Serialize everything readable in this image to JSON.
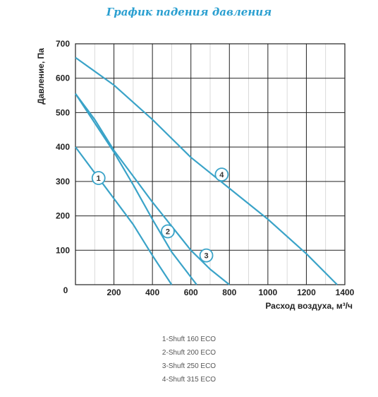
{
  "chart_data": {
    "type": "line",
    "title": "График падения давления",
    "xlabel": "Расход воздуха, м³/ч",
    "ylabel": "Давление, Па",
    "xlim": [
      0,
      1400
    ],
    "ylim": [
      0,
      700
    ],
    "x_ticks": [
      0,
      200,
      400,
      600,
      800,
      1000,
      1200,
      1400
    ],
    "y_ticks": [
      0,
      100,
      200,
      300,
      400,
      500,
      600,
      700
    ],
    "grid": true,
    "legend_placement": "bottom-center",
    "line_color": "#3aa3c8",
    "series": [
      {
        "name": "1-Shuft 160 ECO",
        "marker": "1",
        "points": [
          [
            0,
            400
          ],
          [
            100,
            325
          ],
          [
            200,
            250
          ],
          [
            300,
            175
          ],
          [
            400,
            85
          ],
          [
            500,
            0
          ]
        ]
      },
      {
        "name": "2-Shuft 200 ECO",
        "marker": "2",
        "points": [
          [
            0,
            555
          ],
          [
            100,
            470
          ],
          [
            200,
            385
          ],
          [
            300,
            290
          ],
          [
            400,
            190
          ],
          [
            500,
            95
          ],
          [
            630,
            0
          ]
        ]
      },
      {
        "name": "3-Shuft 250 ECO",
        "marker": "3",
        "points": [
          [
            0,
            555
          ],
          [
            100,
            480
          ],
          [
            200,
            390
          ],
          [
            300,
            315
          ],
          [
            400,
            240
          ],
          [
            500,
            170
          ],
          [
            600,
            100
          ],
          [
            700,
            45
          ],
          [
            800,
            0
          ]
        ]
      },
      {
        "name": "4-Shuft 315 ECO",
        "marker": "4",
        "points": [
          [
            0,
            660
          ],
          [
            200,
            580
          ],
          [
            400,
            480
          ],
          [
            600,
            370
          ],
          [
            800,
            280
          ],
          [
            1000,
            190
          ],
          [
            1200,
            90
          ],
          [
            1360,
            0
          ]
        ]
      }
    ]
  },
  "legend": {
    "items": [
      "1-Shuft 160 ECO",
      "2-Shuft 200 ECO",
      "3-Shuft 250 ECO",
      "4-Shuft 315 ECO"
    ]
  }
}
